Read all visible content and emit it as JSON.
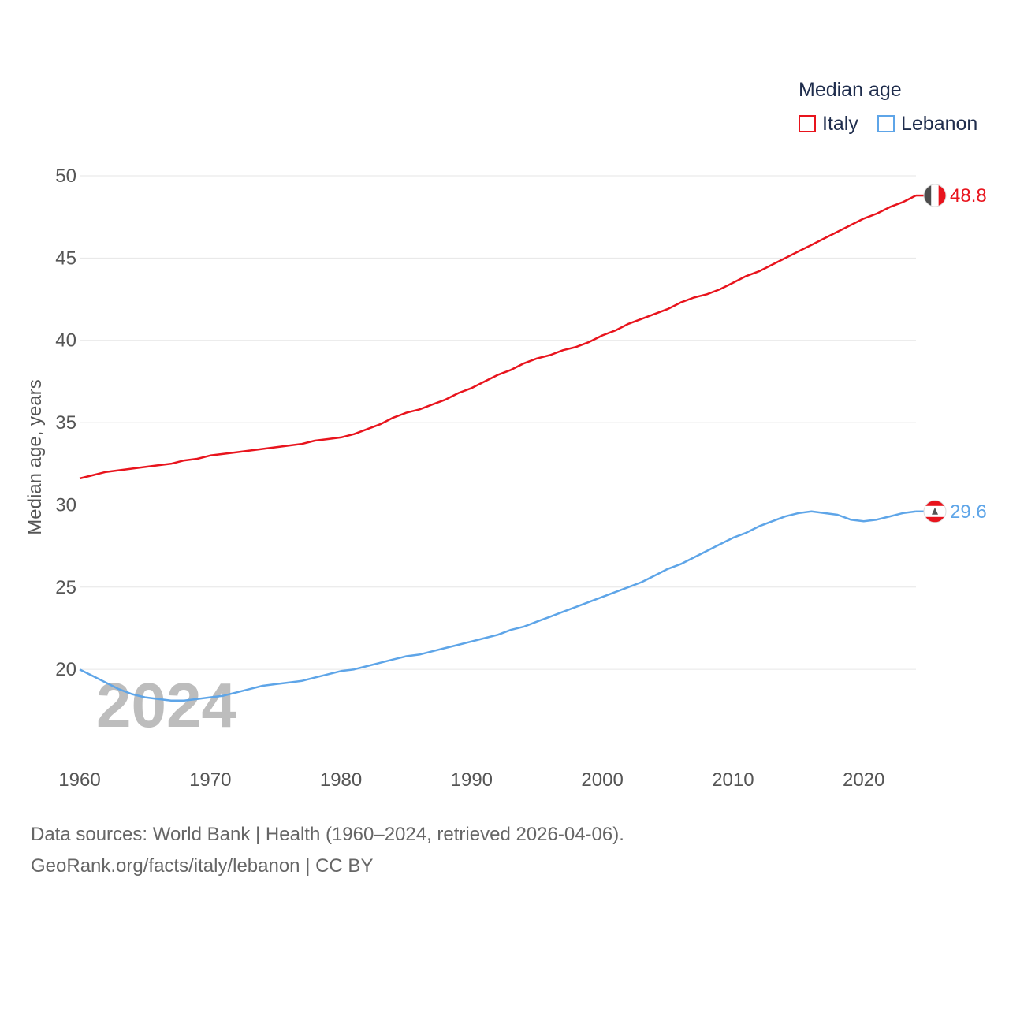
{
  "colors": {
    "italy": "#e8141d",
    "lebanon": "#5ea5e8",
    "grid": "#e6e6e6",
    "axis_text": "#555555",
    "year_watermark": "#bdbdbd"
  },
  "legend": {
    "title": "Median age",
    "items": [
      {
        "label": "Italy"
      },
      {
        "label": "Lebanon"
      }
    ]
  },
  "chart_data": {
    "type": "line",
    "title": "Median age",
    "ylabel": "Median age, years",
    "xlabel": "",
    "xlim": [
      1960,
      2024
    ],
    "ylim": [
      15.6,
      50
    ],
    "yticks": [
      20,
      25,
      30,
      35,
      40,
      45,
      50
    ],
    "xticks": [
      1960,
      1970,
      1980,
      1990,
      2000,
      2010,
      2020
    ],
    "year_label": "2024",
    "x": [
      1960,
      1961,
      1962,
      1963,
      1964,
      1965,
      1966,
      1967,
      1968,
      1969,
      1970,
      1971,
      1972,
      1973,
      1974,
      1975,
      1976,
      1977,
      1978,
      1979,
      1980,
      1981,
      1982,
      1983,
      1984,
      1985,
      1986,
      1987,
      1988,
      1989,
      1990,
      1991,
      1992,
      1993,
      1994,
      1995,
      1996,
      1997,
      1998,
      1999,
      2000,
      2001,
      2002,
      2003,
      2004,
      2005,
      2006,
      2007,
      2008,
      2009,
      2010,
      2011,
      2012,
      2013,
      2014,
      2015,
      2016,
      2017,
      2018,
      2019,
      2020,
      2021,
      2022,
      2023,
      2024
    ],
    "series": [
      {
        "name": "Italy",
        "end_label": "48.8",
        "values": [
          31.6,
          31.8,
          32.0,
          32.1,
          32.2,
          32.3,
          32.4,
          32.5,
          32.7,
          32.8,
          33.0,
          33.1,
          33.2,
          33.3,
          33.4,
          33.5,
          33.6,
          33.7,
          33.9,
          34.0,
          34.1,
          34.3,
          34.6,
          34.9,
          35.3,
          35.6,
          35.8,
          36.1,
          36.4,
          36.8,
          37.1,
          37.5,
          37.9,
          38.2,
          38.6,
          38.9,
          39.1,
          39.4,
          39.6,
          39.9,
          40.3,
          40.6,
          41.0,
          41.3,
          41.6,
          41.9,
          42.3,
          42.6,
          42.8,
          43.1,
          43.5,
          43.9,
          44.2,
          44.6,
          45.0,
          45.4,
          45.8,
          46.2,
          46.6,
          47.0,
          47.4,
          47.7,
          48.1,
          48.4,
          48.8
        ]
      },
      {
        "name": "Lebanon",
        "end_label": "29.6",
        "values": [
          20.0,
          19.6,
          19.2,
          18.8,
          18.5,
          18.3,
          18.2,
          18.1,
          18.1,
          18.2,
          18.3,
          18.4,
          18.6,
          18.8,
          19.0,
          19.1,
          19.2,
          19.3,
          19.5,
          19.7,
          19.9,
          20.0,
          20.2,
          20.4,
          20.6,
          20.8,
          20.9,
          21.1,
          21.3,
          21.5,
          21.7,
          21.9,
          22.1,
          22.4,
          22.6,
          22.9,
          23.2,
          23.5,
          23.8,
          24.1,
          24.4,
          24.7,
          25.0,
          25.3,
          25.7,
          26.1,
          26.4,
          26.8,
          27.2,
          27.6,
          28.0,
          28.3,
          28.7,
          29.0,
          29.3,
          29.5,
          29.6,
          29.5,
          29.4,
          29.1,
          29.0,
          29.1,
          29.3,
          29.5,
          29.6
        ]
      }
    ]
  },
  "footer": {
    "source": "Data sources: World Bank | Health (1960–2024, retrieved 2026-04-06).",
    "attribution": "GeoRank.org/facts/italy/lebanon | CC BY"
  }
}
